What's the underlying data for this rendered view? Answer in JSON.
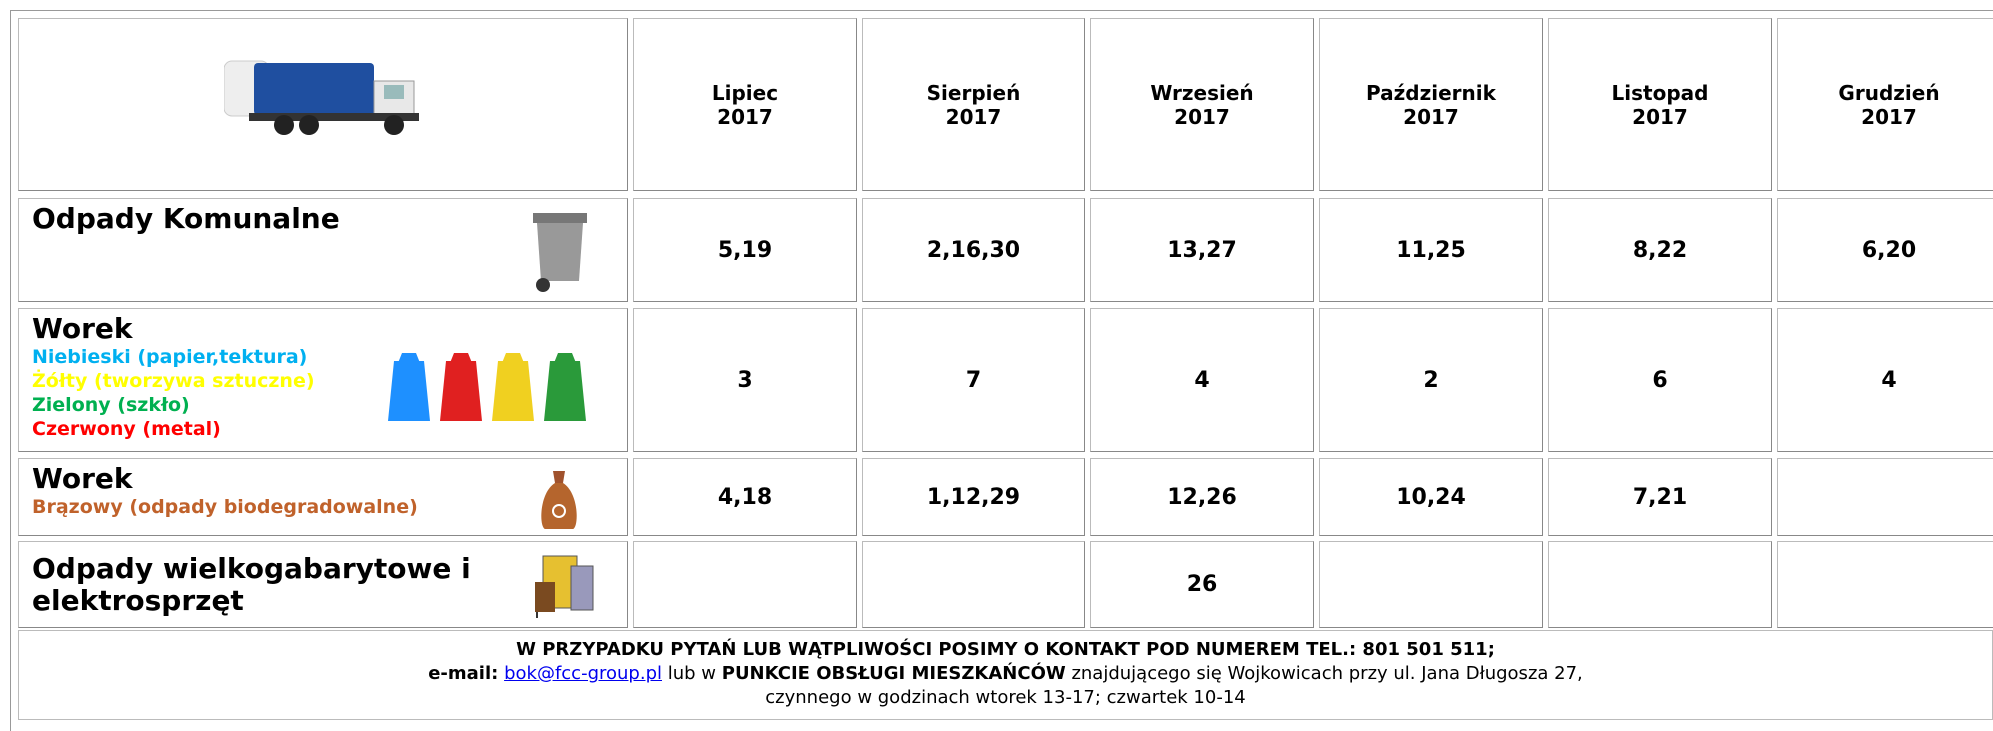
{
  "header": {
    "months": [
      {
        "month": "Lipiec",
        "year": "2017"
      },
      {
        "month": "Sierpień",
        "year": "2017"
      },
      {
        "month": "Wrzesień",
        "year": "2017"
      },
      {
        "month": "Październik",
        "year": "2017"
      },
      {
        "month": "Listopad",
        "year": "2017"
      },
      {
        "month": "Grudzień",
        "year": "2017"
      }
    ]
  },
  "rows": [
    {
      "label": "Odpady Komunalne",
      "values": [
        "5,19",
        "2,16,30",
        "13,27",
        "11,25",
        "8,22",
        "6,20"
      ]
    },
    {
      "label": "Worek",
      "sublabels": [
        {
          "text": "Niebieski (papier,tektura)",
          "color": "#00b0f0"
        },
        {
          "text": "Żółty (tworzywa sztuczne)",
          "color": "#ffff00"
        },
        {
          "text": "Zielony (szkło)",
          "color": "#00b050"
        },
        {
          "text": "Czerwony (metal)",
          "color": "#ff0000"
        }
      ],
      "values": [
        "3",
        "7",
        "4",
        "2",
        "6",
        "4"
      ]
    },
    {
      "label": "Worek",
      "sublabels": [
        {
          "text": "Brązowy (odpady biodegradowalne)",
          "color": "#c0622b"
        }
      ],
      "values": [
        "4,18",
        "1,12,29",
        "12,26",
        "10,24",
        "7,21",
        null
      ]
    },
    {
      "label": "Odpady wielkogabarytowe i elektrosprzęt",
      "values": [
        null,
        null,
        "26",
        null,
        null,
        null
      ]
    }
  ],
  "footer": {
    "line1": "W PRZYPADKU PYTAŃ LUB WĄTPLIWOŚCI POSIMY O KONTAKT  POD NUMEREM TEL.: 801 501 511;",
    "email_label": "e-mail:",
    "email": "bok@fcc-group.pl",
    "connector": "lub w",
    "office": "PUNKCIE OBSŁUGI MIESZKAŃCÓW",
    "address": "znajdującego się Wojkowicach przy ul. Jana Długosza 27,",
    "line3": "czynnego w godzinach wtorek 13-17; czwartek 10-14"
  }
}
